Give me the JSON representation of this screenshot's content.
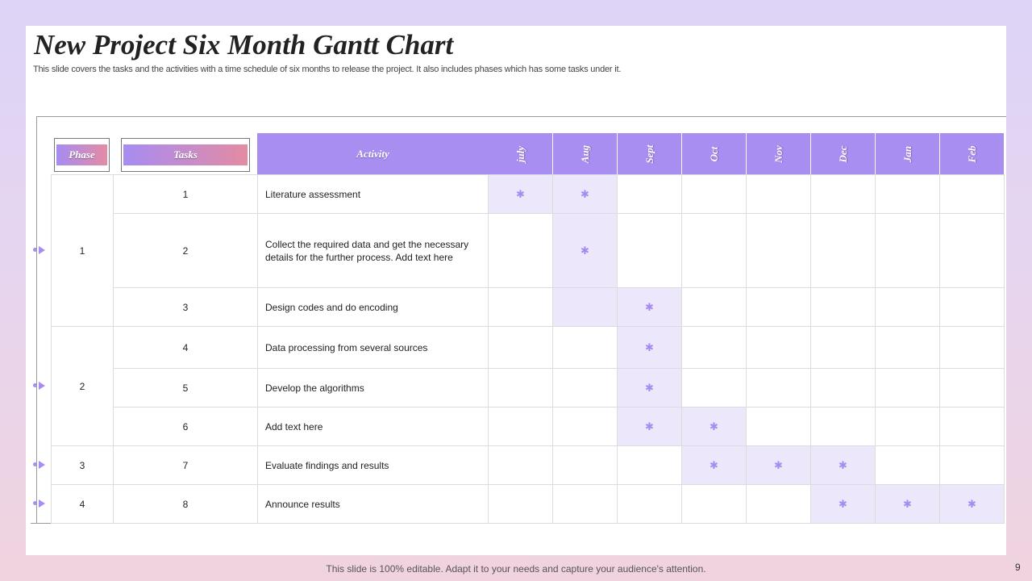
{
  "title": "New Project Six Month Gantt Chart",
  "subtitle": "This slide covers the tasks and the activities with a time schedule of six months  to release the project. It also includes phases which has some tasks under it.",
  "headers": {
    "phase": "Phase",
    "tasks": "Tasks",
    "activity": "Activity",
    "months": [
      "july",
      "Aug",
      "Sept",
      "Oct",
      "Nov",
      "Dec",
      "Jan",
      "Feb"
    ]
  },
  "phases": [
    {
      "label": "1"
    },
    {
      "label": "2"
    },
    {
      "label": "3"
    },
    {
      "label": "4"
    }
  ],
  "tasks": [
    {
      "num": "1",
      "activity": "Literature assessment",
      "active": [
        0,
        1
      ]
    },
    {
      "num": "2",
      "activity": "Collect the required  data and get the necessary details for the further process. Add text here",
      "active": [
        1
      ]
    },
    {
      "num": "3",
      "activity": "Design codes and do encoding",
      "active": [
        2
      ],
      "shaded": [
        1
      ]
    },
    {
      "num": "4",
      "activity": "Data processing from several sources",
      "active": [
        2
      ]
    },
    {
      "num": "5",
      "activity": "Develop  the algorithms",
      "active": [
        2
      ]
    },
    {
      "num": "6",
      "activity": "Add text here",
      "active": [
        2,
        3
      ]
    },
    {
      "num": "7",
      "activity": "Evaluate findings and results",
      "active": [
        3,
        4,
        5
      ]
    },
    {
      "num": "8",
      "activity": "Announce results",
      "active": [
        5,
        6,
        7
      ]
    }
  ],
  "marker_icon": "phase-arrow-icon",
  "cell_icon": "asterisk-icon",
  "accent_color": "#a98ef2",
  "footer": "This slide is 100% editable. Adapt it to your needs and capture your audience's attention.",
  "page_number": "9"
}
